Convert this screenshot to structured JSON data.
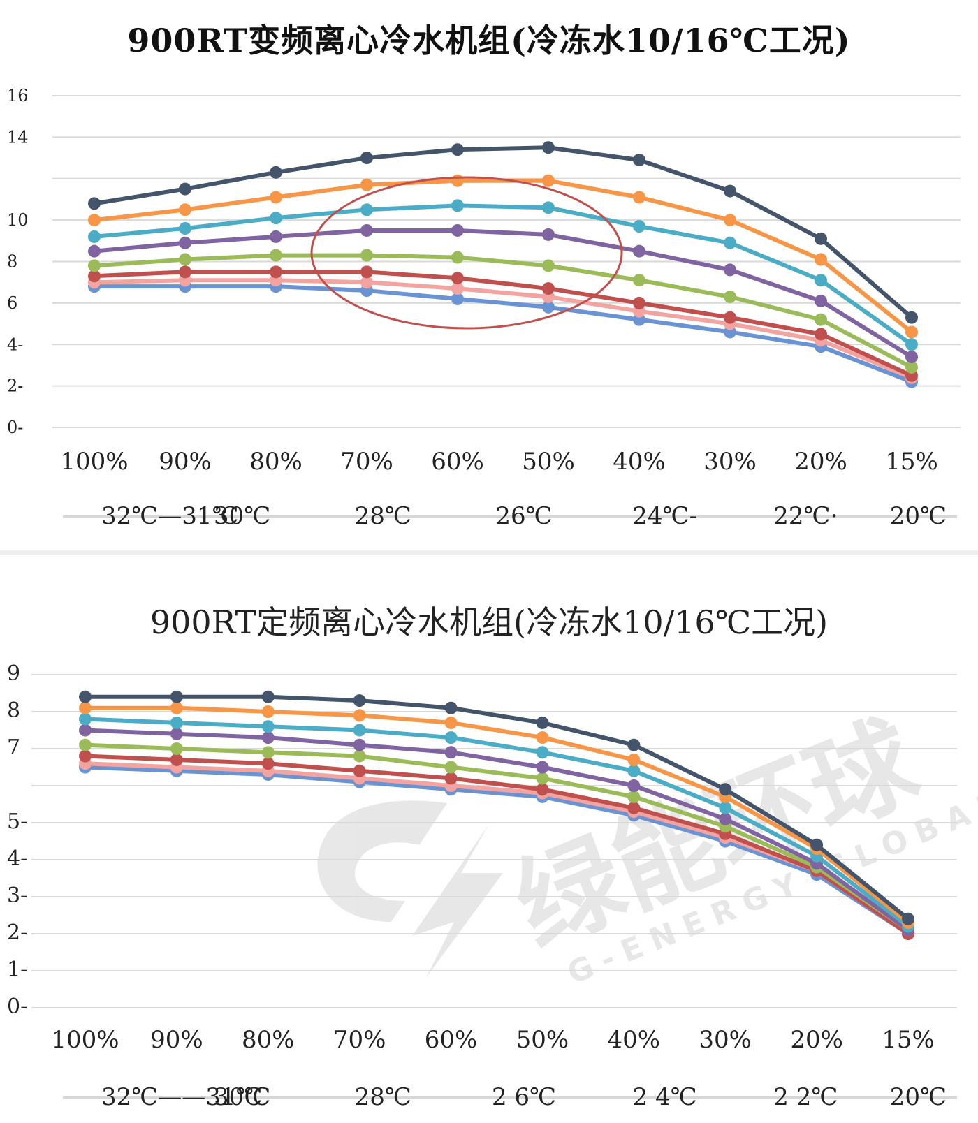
{
  "colors": {
    "grid": "#d9d9d9",
    "series_palette": [
      "#6a93d4",
      "#f3a3a0",
      "#c0504d",
      "#9bbb59",
      "#8064a2",
      "#4bacc6",
      "#f79646",
      "#44546a"
    ],
    "circle": "#c0504d",
    "watermark": "#c8c8c8"
  },
  "watermark": {
    "chinese": "绿能环球",
    "english": "G-ENERGY GLOBAL",
    "icon": "lightning-leaf-logo-icon"
  },
  "chart_data": [
    {
      "type": "line",
      "title": "900RT变频离心冷水机组(冷冻水10/16℃工况)",
      "categories": [
        "100%",
        "90%",
        "80%",
        "70%",
        "60%",
        "50%",
        "40%",
        "30%",
        "20%",
        "15%"
      ],
      "y_ticks": [
        "16",
        "14",
        "",
        "10",
        "8",
        "6",
        "4-",
        "2-",
        "0-"
      ],
      "ylim": [
        0,
        16
      ],
      "grid": true,
      "legend_position": "bottom",
      "legend_labels": [
        "32℃—31℃",
        "30℃",
        "28℃",
        "26℃",
        "24℃-",
        "22℃·",
        "20℃"
      ],
      "annotation": "red ellipse highlighting 70%–50% load region",
      "series": [
        {
          "values": [
            6.8,
            6.8,
            6.8,
            6.6,
            6.2,
            5.8,
            5.2,
            4.6,
            3.9,
            2.2
          ]
        },
        {
          "values": [
            7.0,
            7.1,
            7.1,
            7.0,
            6.7,
            6.3,
            5.6,
            5.0,
            4.2,
            2.4
          ]
        },
        {
          "values": [
            7.3,
            7.5,
            7.5,
            7.5,
            7.2,
            6.7,
            6.0,
            5.3,
            4.5,
            2.5
          ]
        },
        {
          "values": [
            7.8,
            8.1,
            8.3,
            8.3,
            8.2,
            7.8,
            7.1,
            6.3,
            5.2,
            2.9
          ]
        },
        {
          "values": [
            8.5,
            8.9,
            9.2,
            9.5,
            9.5,
            9.3,
            8.5,
            7.6,
            6.1,
            3.4
          ]
        },
        {
          "values": [
            9.2,
            9.6,
            10.1,
            10.5,
            10.7,
            10.6,
            9.7,
            8.9,
            7.1,
            4.0
          ]
        },
        {
          "values": [
            10.0,
            10.5,
            11.1,
            11.7,
            11.9,
            11.9,
            11.1,
            10.0,
            8.1,
            4.6
          ]
        },
        {
          "values": [
            10.8,
            11.5,
            12.3,
            13.0,
            13.4,
            13.5,
            12.9,
            11.4,
            9.1,
            5.3
          ]
        }
      ]
    },
    {
      "type": "line",
      "title": "900RT定频离心冷水机组(冷冻水10/16℃工况)",
      "categories": [
        "100%",
        "90%",
        "80%",
        "70%",
        "60%",
        "50%",
        "40%",
        "30%",
        "20%",
        "15%"
      ],
      "y_ticks": [
        "9",
        "8",
        "7",
        "",
        "5-",
        "4-",
        "3-",
        "2-",
        "1-",
        "0-"
      ],
      "ylim": [
        0,
        9
      ],
      "grid": true,
      "legend_position": "bottom",
      "legend_labels": [
        "32℃——31℃",
        "30℃",
        "28℃",
        "2 6℃",
        "2 4℃",
        "2 2℃",
        "20℃"
      ],
      "series": [
        {
          "values": [
            6.5,
            6.4,
            6.3,
            6.1,
            5.9,
            5.7,
            5.2,
            4.5,
            3.6,
            2.0
          ]
        },
        {
          "values": [
            6.6,
            6.5,
            6.4,
            6.2,
            6.0,
            5.8,
            5.3,
            4.6,
            3.7,
            2.0
          ]
        },
        {
          "values": [
            6.8,
            6.7,
            6.6,
            6.4,
            6.2,
            5.9,
            5.4,
            4.7,
            3.7,
            2.0
          ]
        },
        {
          "values": [
            7.1,
            7.0,
            6.9,
            6.8,
            6.5,
            6.2,
            5.7,
            4.9,
            3.8,
            2.1
          ]
        },
        {
          "values": [
            7.5,
            7.4,
            7.3,
            7.1,
            6.9,
            6.5,
            6.0,
            5.1,
            3.9,
            2.1
          ]
        },
        {
          "values": [
            7.8,
            7.7,
            7.6,
            7.5,
            7.3,
            6.9,
            6.4,
            5.4,
            4.1,
            2.2
          ]
        },
        {
          "values": [
            8.1,
            8.1,
            8.0,
            7.9,
            7.7,
            7.3,
            6.7,
            5.7,
            4.3,
            2.3
          ]
        },
        {
          "values": [
            8.4,
            8.4,
            8.4,
            8.3,
            8.1,
            7.7,
            7.1,
            5.9,
            4.4,
            2.4
          ]
        }
      ]
    }
  ]
}
